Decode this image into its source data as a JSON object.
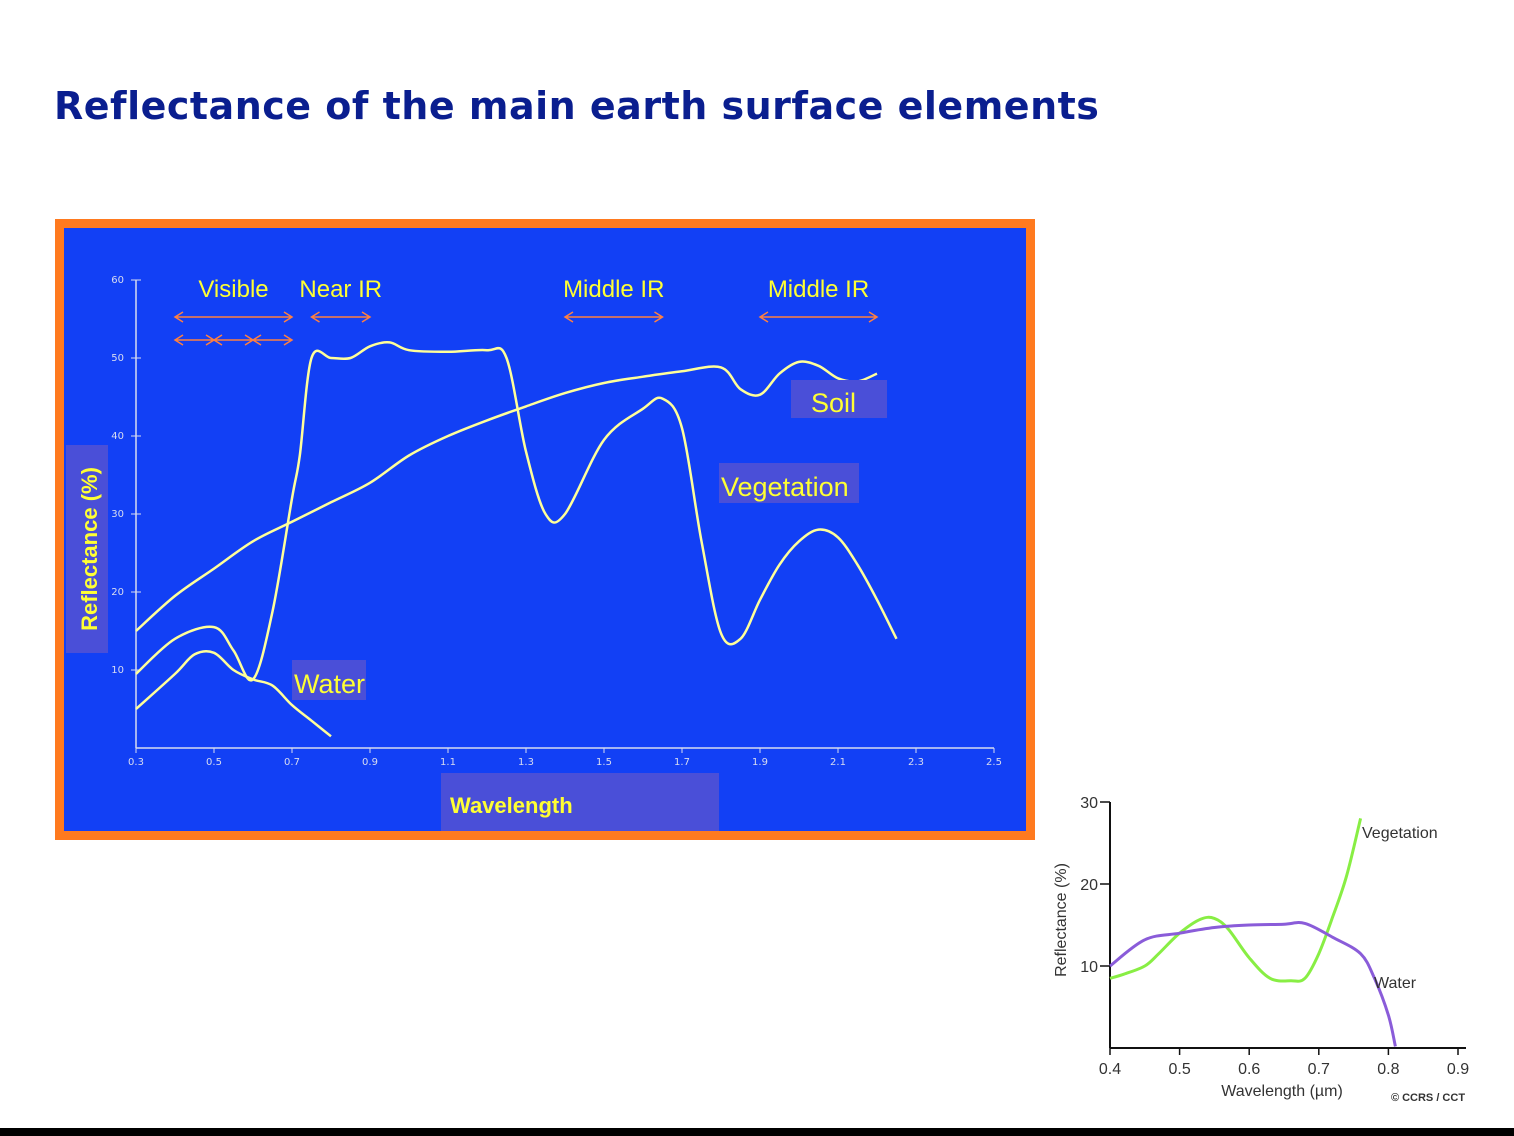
{
  "title": "Reflectance of the main earth surface elements",
  "chart_data": [
    {
      "type": "line",
      "title": "",
      "xlabel": "Wavelength",
      "ylabel": "Reflectance (%)",
      "xlim": [
        0.3,
        2.5
      ],
      "ylim": [
        0,
        60
      ],
      "xticks": [
        "0.3",
        "0.5",
        "0.7",
        "0.9",
        "1.1",
        "1.3",
        "1.5",
        "1.7",
        "1.9",
        "2.1",
        "2.3",
        "2.5"
      ],
      "yticks": [
        "10",
        "20",
        "30",
        "40",
        "50",
        "60"
      ],
      "colors": {
        "background": "#1240f5",
        "frame": "#ff7a1f",
        "curves": "#ffff99",
        "text": "#ffff33",
        "arrows": "#ff8040",
        "label_box": "#4a4fd8"
      },
      "bands": [
        {
          "name": "Visible",
          "from": 0.4,
          "to": 0.7,
          "sub_bands": [
            [
              0.4,
              0.5
            ],
            [
              0.5,
              0.6
            ],
            [
              0.6,
              0.7
            ]
          ]
        },
        {
          "name": "Near IR",
          "from": 0.75,
          "to": 0.9
        },
        {
          "name": "Middle IR",
          "from": 1.4,
          "to": 1.65
        },
        {
          "name": "Middle IR",
          "from": 1.9,
          "to": 2.2
        }
      ],
      "series": [
        {
          "name": "Soil",
          "x": [
            0.3,
            0.4,
            0.5,
            0.6,
            0.7,
            0.8,
            0.9,
            1.0,
            1.1,
            1.2,
            1.3,
            1.4,
            1.5,
            1.6,
            1.7,
            1.8,
            1.85,
            1.9,
            1.95,
            2.0,
            2.05,
            2.1,
            2.15,
            2.2
          ],
          "y": [
            15,
            19.5,
            23,
            26.5,
            29,
            31.5,
            34,
            37.5,
            40,
            42,
            43.8,
            45.5,
            46.8,
            47.6,
            48.3,
            48.8,
            46,
            45.3,
            48,
            49.5,
            49,
            47.4,
            47,
            48
          ]
        },
        {
          "name": "Vegetation",
          "x": [
            0.3,
            0.4,
            0.5,
            0.55,
            0.6,
            0.65,
            0.7,
            0.72,
            0.75,
            0.8,
            0.85,
            0.9,
            0.95,
            1.0,
            1.1,
            1.2,
            1.25,
            1.3,
            1.35,
            1.4,
            1.5,
            1.6,
            1.65,
            1.7,
            1.75,
            1.8,
            1.85,
            1.9,
            1.95,
            2.0,
            2.05,
            2.1,
            2.15,
            2.2,
            2.25
          ],
          "y": [
            9.5,
            14,
            15.5,
            12.5,
            8.8,
            17.5,
            32,
            37.5,
            50,
            50,
            50,
            51.5,
            52,
            51,
            50.8,
            51,
            50,
            38,
            30,
            30,
            39.5,
            43.5,
            44.8,
            41,
            26.5,
            14.7,
            14,
            19,
            23.5,
            26.5,
            28,
            27,
            23.5,
            19,
            14
          ]
        },
        {
          "name": "Water",
          "x": [
            0.3,
            0.4,
            0.45,
            0.5,
            0.55,
            0.6,
            0.65,
            0.7,
            0.75,
            0.8
          ],
          "y": [
            5,
            9.5,
            12,
            12.2,
            10,
            8.8,
            8,
            5.5,
            3.5,
            1.5
          ]
        }
      ]
    },
    {
      "type": "line",
      "title": "",
      "xlabel": "Wavelength (µm)",
      "ylabel": "Reflectance (%)",
      "xlim": [
        0.4,
        0.9
      ],
      "ylim": [
        0,
        30
      ],
      "xticks": [
        "0.4",
        "0.5",
        "0.6",
        "0.7",
        "0.8",
        "0.9"
      ],
      "yticks": [
        "10",
        "20",
        "30"
      ],
      "credit": "© CCRS / CCT",
      "series": [
        {
          "name": "Vegetation",
          "color": "#88ee44",
          "x": [
            0.4,
            0.42,
            0.45,
            0.47,
            0.5,
            0.53,
            0.55,
            0.57,
            0.6,
            0.63,
            0.66,
            0.68,
            0.7,
            0.72,
            0.74,
            0.76
          ],
          "y": [
            8.5,
            9,
            10,
            11.5,
            14,
            15.7,
            15.8,
            14.5,
            11,
            8.5,
            8.2,
            8.5,
            11.5,
            16,
            21,
            28
          ]
        },
        {
          "name": "Water",
          "color": "#8a5cd9",
          "x": [
            0.4,
            0.45,
            0.5,
            0.55,
            0.6,
            0.65,
            0.68,
            0.72,
            0.76,
            0.78,
            0.8,
            0.81
          ],
          "y": [
            10,
            13.2,
            14,
            14.7,
            15,
            15.1,
            15.2,
            13.5,
            11.5,
            8.5,
            4,
            0.2
          ]
        }
      ]
    }
  ]
}
